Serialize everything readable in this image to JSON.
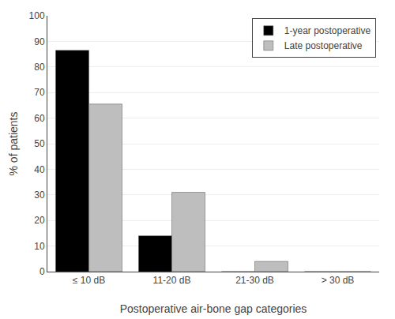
{
  "chart_data": {
    "type": "bar",
    "categories": [
      "≤ 10 dB",
      "11-20 dB",
      "21-30 dB",
      "> 30 dB"
    ],
    "series": [
      {
        "name": "1-year postoperative",
        "color": "#000000",
        "values": [
          86.5,
          14.0,
          0.0,
          0.0
        ]
      },
      {
        "name": "Late postoperative",
        "color": "#bebebe",
        "values": [
          65.5,
          31.0,
          4.0,
          0.0
        ]
      }
    ],
    "xlabel": "Postoperative air-bone gap categories",
    "ylabel": "% of patients",
    "ylim": [
      0,
      100
    ],
    "yticks": [
      0,
      10,
      20,
      30,
      40,
      50,
      60,
      70,
      80,
      90,
      100
    ],
    "grid": true,
    "legend": "upper right"
  }
}
